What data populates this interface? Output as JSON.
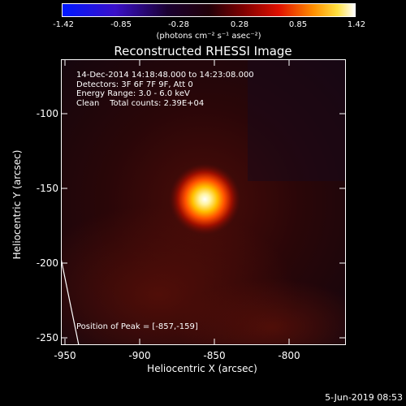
{
  "colorbar": {
    "ticks": [
      "-1.42",
      "-0.85",
      "-0.28",
      "0.28",
      "0.85",
      "1.42"
    ],
    "units": "(photons cm⁻² s⁻¹ asec⁻²)",
    "min": -1.42,
    "max": 1.42,
    "colormap": "blue-purple-red-yellow-white"
  },
  "title": "Reconstructed RHESSI Image",
  "annotations": [
    "14-Dec-2014 14:18:48.000 to 14:23:08.000",
    "Detectors: 3F 6F 7F 9F, Att 0",
    "Energy Range: 3.0 - 6.0 keV",
    "Clean    Total counts: 2.39E+04"
  ],
  "peak_label": "Position of Peak = [-857,-159]",
  "axes": {
    "xlabel": "Heliocentric X (arcsec)",
    "ylabel": "Heliocentric Y (arcsec)",
    "xticks": [
      "-950",
      "-900",
      "-850",
      "-800"
    ],
    "yticks": [
      "-100",
      "-150",
      "-200",
      "-250"
    ],
    "xlim": [
      -953,
      -763
    ],
    "ylim": [
      -256,
      -66
    ]
  },
  "peak": {
    "x": -857,
    "y": -159
  },
  "date": "5-Jun-2019 08:53"
}
